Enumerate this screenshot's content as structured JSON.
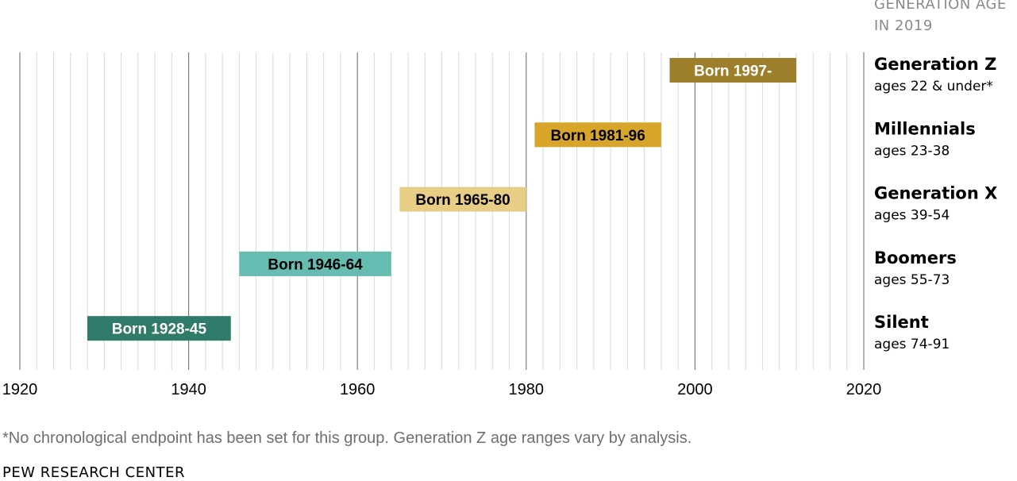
{
  "chart_data": {
    "type": "bar",
    "orientation": "horizontal-range",
    "header": [
      "GENERATION AGE",
      "IN 2019"
    ],
    "xlim": [
      1920,
      2020
    ],
    "xticks": [
      1920,
      1940,
      1960,
      1980,
      2000,
      2020
    ],
    "minor_gridlines_every": 2,
    "series": [
      {
        "name": "Generation Z",
        "ages": "ages 22 & under*",
        "start": 1997,
        "end": 2012,
        "label": "Born 1997-",
        "color": "#9c7e2b",
        "text_color": "#ffffff"
      },
      {
        "name": "Millennials",
        "ages": "ages 23-38",
        "start": 1981,
        "end": 1996,
        "label": "Born 1981-96",
        "color": "#d7a52a",
        "text_color": "#000000"
      },
      {
        "name": "Generation X",
        "ages": "ages 39-54",
        "start": 1965,
        "end": 1980,
        "label": "Born 1965-80",
        "color": "#e8cd87",
        "text_color": "#000000"
      },
      {
        "name": "Boomers",
        "ages": "ages 55-73",
        "start": 1946,
        "end": 1964,
        "label": "Born 1946-64",
        "color": "#66bcb0",
        "text_color": "#000000"
      },
      {
        "name": "Silent",
        "ages": "ages 74-91",
        "start": 1928,
        "end": 1945,
        "label": "Born 1928-45",
        "color": "#2f7a68",
        "text_color": "#ffffff"
      }
    ]
  },
  "footnote": "*No chronological endpoint has been set for this group. Generation Z age ranges vary by analysis.",
  "source": "PEW RESEARCH CENTER"
}
